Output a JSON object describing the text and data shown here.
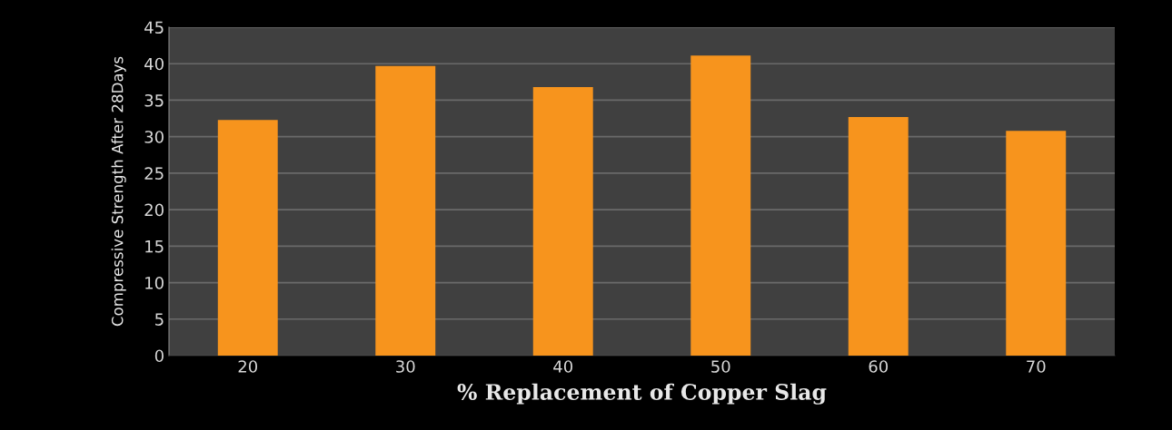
{
  "chart_data": {
    "type": "bar",
    "xlabel": "% Replacement of Copper Slag",
    "ylabel": "Compressive Strength After 28Days",
    "categories": [
      "20",
      "30",
      "40",
      "50",
      "60",
      "70"
    ],
    "values": [
      32.3,
      39.7,
      36.8,
      41.1,
      32.7,
      30.8
    ],
    "color": "#f7941d",
    "ylim": [
      0,
      45
    ],
    "yticks": [
      0,
      5,
      10,
      15,
      20,
      25,
      30,
      35,
      40,
      45
    ],
    "grid": "y",
    "legend": false
  }
}
